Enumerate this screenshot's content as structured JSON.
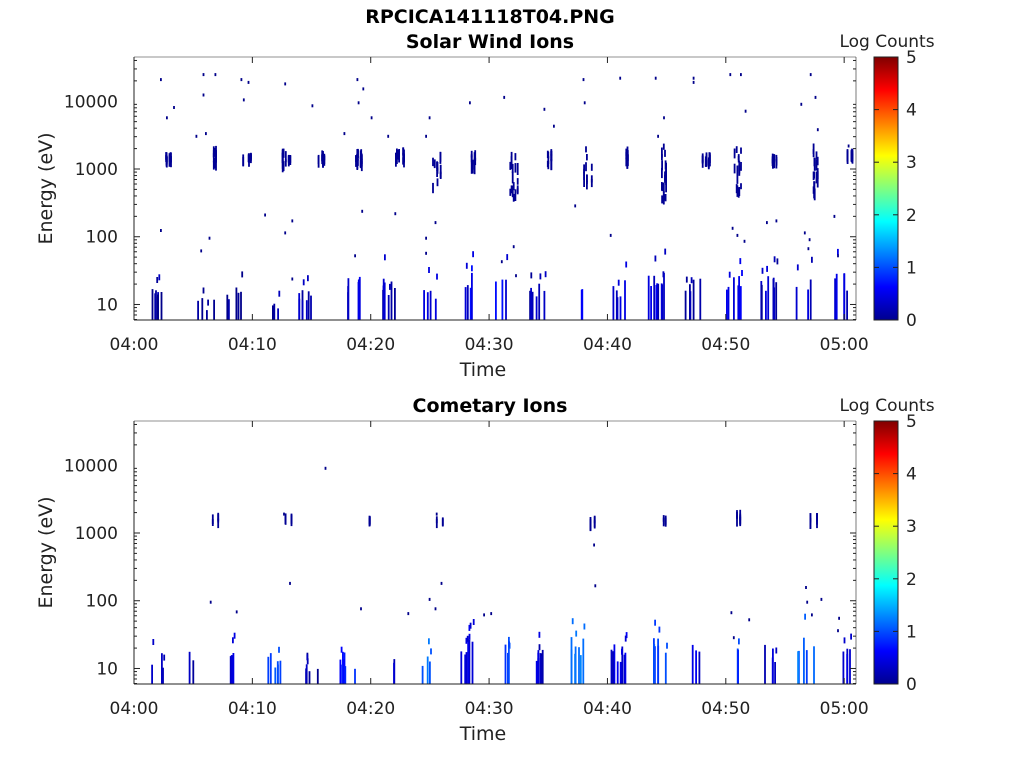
{
  "main_title": "RPCICA141118T04.PNG",
  "chart_data": [
    {
      "type": "heatmap",
      "title": "Solar Wind Ions",
      "xlabel": "Time",
      "ylabel": "Energy (eV)",
      "xticks": [
        "04:00",
        "04:10",
        "04:20",
        "04:30",
        "04:40",
        "04:50",
        "05:00"
      ],
      "xlim_minutes": [
        0,
        61
      ],
      "yticks": [
        "10",
        "100",
        "1000",
        "10000"
      ],
      "ylim": [
        5.9,
        45000
      ],
      "yscale": "log",
      "colorbar": {
        "label": "Log Counts",
        "ticks": [
          "0",
          "1",
          "2",
          "3",
          "4",
          "5"
        ],
        "range": [
          0,
          5
        ],
        "colormap": "jet"
      },
      "low_energy_bursts": [
        {
          "t": 2.0,
          "top": 17,
          "v": 0.2
        },
        {
          "t": 6.0,
          "top": 12,
          "v": 0.1
        },
        {
          "t": 8.5,
          "top": 17,
          "v": 0.2
        },
        {
          "t": 11.5,
          "top": 12,
          "v": 0.1
        },
        {
          "t": 14.5,
          "top": 17,
          "v": 0.2
        },
        {
          "t": 18.5,
          "top": 25,
          "v": 0.4
        },
        {
          "t": 21.5,
          "top": 25,
          "v": 0.3
        },
        {
          "t": 24.8,
          "top": 22,
          "v": 0.3
        },
        {
          "t": 27.8,
          "top": 28,
          "v": 0.5
        },
        {
          "t": 31.2,
          "top": 28,
          "v": 0.5
        },
        {
          "t": 34.0,
          "top": 22,
          "v": 0.3
        },
        {
          "t": 37.2,
          "top": 28,
          "v": 0.5
        },
        {
          "t": 40.8,
          "top": 22,
          "v": 0.3
        },
        {
          "t": 44.0,
          "top": 28,
          "v": 0.4
        },
        {
          "t": 47.2,
          "top": 25,
          "v": 0.3
        },
        {
          "t": 50.5,
          "top": 28,
          "v": 0.4
        },
        {
          "t": 53.6,
          "top": 25,
          "v": 0.3
        },
        {
          "t": 56.6,
          "top": 25,
          "v": 0.4
        },
        {
          "t": 59.8,
          "top": 28,
          "v": 0.4
        }
      ],
      "high_energy_bursts": [
        {
          "t": 2.8,
          "lo": 1500,
          "hi": 1800
        },
        {
          "t": 6.5,
          "lo": 1300,
          "hi": 2200
        },
        {
          "t": 9.5,
          "lo": 1500,
          "hi": 1800
        },
        {
          "t": 12.8,
          "lo": 1300,
          "hi": 2000
        },
        {
          "t": 15.8,
          "lo": 1400,
          "hi": 2000
        },
        {
          "t": 19.0,
          "lo": 1300,
          "hi": 2000
        },
        {
          "t": 22.4,
          "lo": 1400,
          "hi": 2100
        },
        {
          "t": 25.5,
          "lo": 600,
          "hi": 1800
        },
        {
          "t": 28.5,
          "lo": 1200,
          "hi": 2000
        },
        {
          "t": 32.0,
          "lo": 400,
          "hi": 1800
        },
        {
          "t": 35.0,
          "lo": 1300,
          "hi": 2000
        },
        {
          "t": 38.3,
          "lo": 500,
          "hi": 2500
        },
        {
          "t": 41.5,
          "lo": 1400,
          "hi": 2200
        },
        {
          "t": 44.8,
          "lo": 400,
          "hi": 2400
        },
        {
          "t": 48.3,
          "lo": 1300,
          "hi": 1800
        },
        {
          "t": 51.0,
          "lo": 500,
          "hi": 2400
        },
        {
          "t": 54.2,
          "lo": 1400,
          "hi": 1800
        },
        {
          "t": 57.5,
          "lo": 500,
          "hi": 2400
        },
        {
          "t": 60.5,
          "lo": 1600,
          "hi": 2000
        }
      ],
      "scatter": [
        {
          "t": 2.2,
          "e": 22000
        },
        {
          "t": 2.7,
          "e": 6000
        },
        {
          "t": 3.3,
          "e": 8500
        },
        {
          "t": 2.2,
          "e": 130
        },
        {
          "t": 5.8,
          "e": 26000
        },
        {
          "t": 6.8,
          "e": 26000
        },
        {
          "t": 5.8,
          "e": 13000
        },
        {
          "t": 5.2,
          "e": 3200
        },
        {
          "t": 6.0,
          "e": 3500
        },
        {
          "t": 6.3,
          "e": 100
        },
        {
          "t": 5.6,
          "e": 65
        },
        {
          "t": 9.0,
          "e": 22000
        },
        {
          "t": 9.6,
          "e": 20000
        },
        {
          "t": 9.2,
          "e": 11000
        },
        {
          "t": 11.0,
          "e": 220
        },
        {
          "t": 12.7,
          "e": 19000
        },
        {
          "t": 13.3,
          "e": 180
        },
        {
          "t": 13.3,
          "e": 25
        },
        {
          "t": 12.7,
          "e": 120
        },
        {
          "t": 15.0,
          "e": 9000
        },
        {
          "t": 18.8,
          "e": 22000
        },
        {
          "t": 19.3,
          "e": 16000
        },
        {
          "t": 18.9,
          "e": 10000
        },
        {
          "t": 17.7,
          "e": 3500
        },
        {
          "t": 19.2,
          "e": 250
        },
        {
          "t": 18.6,
          "e": 55
        },
        {
          "t": 20.0,
          "e": 6000
        },
        {
          "t": 21.4,
          "e": 3200
        },
        {
          "t": 22.0,
          "e": 230
        },
        {
          "t": 24.9,
          "e": 6000
        },
        {
          "t": 24.6,
          "e": 3200
        },
        {
          "t": 25.4,
          "e": 170
        },
        {
          "t": 24.6,
          "e": 100
        },
        {
          "t": 24.6,
          "e": 60
        },
        {
          "t": 28.3,
          "e": 10000
        },
        {
          "t": 31.2,
          "e": 12000
        },
        {
          "t": 32.0,
          "e": 75
        },
        {
          "t": 31.0,
          "e": 45
        },
        {
          "t": 32.2,
          "e": 28
        },
        {
          "t": 34.6,
          "e": 8000
        },
        {
          "t": 35.4,
          "e": 4500
        },
        {
          "t": 37.9,
          "e": 22000
        },
        {
          "t": 38.0,
          "e": 10000
        },
        {
          "t": 37.2,
          "e": 300
        },
        {
          "t": 41.0,
          "e": 23000
        },
        {
          "t": 40.2,
          "e": 110
        },
        {
          "t": 44.0,
          "e": 23000
        },
        {
          "t": 44.7,
          "e": 6000
        },
        {
          "t": 44.2,
          "e": 3200
        },
        {
          "t": 47.2,
          "e": 23000
        },
        {
          "t": 47.2,
          "e": 20000
        },
        {
          "t": 50.3,
          "e": 26000
        },
        {
          "t": 51.2,
          "e": 26000
        },
        {
          "t": 51.6,
          "e": 7500
        },
        {
          "t": 50.5,
          "e": 140
        },
        {
          "t": 50.9,
          "e": 110
        },
        {
          "t": 51.5,
          "e": 90
        },
        {
          "t": 53.4,
          "e": 170
        },
        {
          "t": 54.2,
          "e": 180
        },
        {
          "t": 57.1,
          "e": 26000
        },
        {
          "t": 57.5,
          "e": 12000
        },
        {
          "t": 56.3,
          "e": 9500
        },
        {
          "t": 57.7,
          "e": 4000
        },
        {
          "t": 56.6,
          "e": 120
        },
        {
          "t": 57.0,
          "e": 95
        },
        {
          "t": 56.9,
          "e": 70
        },
        {
          "t": 59.1,
          "e": 210
        },
        {
          "t": 59.4,
          "e": 55
        },
        {
          "t": 60.3,
          "e": 2300
        }
      ]
    },
    {
      "type": "heatmap",
      "title": "Cometary Ions",
      "xlabel": "Time",
      "ylabel": "Energy (eV)",
      "xticks": [
        "04:00",
        "04:10",
        "04:20",
        "04:30",
        "04:40",
        "04:50",
        "05:00"
      ],
      "xlim_minutes": [
        0,
        61
      ],
      "yticks": [
        "10",
        "100",
        "1000",
        "10000"
      ],
      "ylim": [
        5.9,
        45000
      ],
      "yscale": "log",
      "colorbar": {
        "label": "Log Counts",
        "ticks": [
          "0",
          "1",
          "2",
          "3",
          "4",
          "5"
        ],
        "range": [
          0,
          5
        ],
        "colormap": "jet"
      },
      "low_energy_bursts": [
        {
          "t": 2.0,
          "top": 17,
          "v": 0.2
        },
        {
          "t": 5.3,
          "top": 17,
          "v": 0.3
        },
        {
          "t": 8.5,
          "top": 22,
          "v": 0.5
        },
        {
          "t": 11.6,
          "top": 17,
          "v": 1.0
        },
        {
          "t": 14.8,
          "top": 12,
          "v": 0.2
        },
        {
          "t": 17.9,
          "top": 17,
          "v": 0.8
        },
        {
          "t": 21.3,
          "top": 22,
          "v": 0.3
        },
        {
          "t": 24.8,
          "top": 17,
          "v": 1.2
        },
        {
          "t": 27.9,
          "top": 28,
          "v": 0.5
        },
        {
          "t": 31.0,
          "top": 28,
          "v": 1.0
        },
        {
          "t": 34.2,
          "top": 22,
          "v": 0.3
        },
        {
          "t": 37.5,
          "top": 28,
          "v": 1.2
        },
        {
          "t": 40.8,
          "top": 22,
          "v": 0.4
        },
        {
          "t": 44.2,
          "top": 28,
          "v": 1.0
        },
        {
          "t": 47.4,
          "top": 25,
          "v": 0.4
        },
        {
          "t": 50.3,
          "top": 28,
          "v": 0.9
        },
        {
          "t": 53.5,
          "top": 22,
          "v": 0.4
        },
        {
          "t": 56.7,
          "top": 28,
          "v": 1.1
        },
        {
          "t": 59.9,
          "top": 28,
          "v": 0.5
        }
      ],
      "high_energy_bursts": [
        {
          "t": 6.8,
          "lo": 1500,
          "hi": 2000
        },
        {
          "t": 13.0,
          "lo": 1600,
          "hi": 2000
        },
        {
          "t": 19.5,
          "lo": 1600,
          "hi": 1800
        },
        {
          "t": 25.7,
          "lo": 1500,
          "hi": 2000
        },
        {
          "t": 38.6,
          "lo": 1500,
          "hi": 1800
        },
        {
          "t": 44.8,
          "lo": 1600,
          "hi": 2000
        },
        {
          "t": 51.0,
          "lo": 1600,
          "hi": 2200
        },
        {
          "t": 57.4,
          "lo": 1600,
          "hi": 2000
        }
      ],
      "scatter": [
        {
          "t": 16.1,
          "e": 9500
        },
        {
          "t": 6.4,
          "e": 100
        },
        {
          "t": 8.6,
          "e": 72
        },
        {
          "t": 13.1,
          "e": 190
        },
        {
          "t": 12.6,
          "e": 2000
        },
        {
          "t": 19.1,
          "e": 80
        },
        {
          "t": 23.1,
          "e": 68
        },
        {
          "t": 24.9,
          "e": 110
        },
        {
          "t": 25.4,
          "e": 80
        },
        {
          "t": 25.9,
          "e": 190
        },
        {
          "t": 25.5,
          "e": 2000
        },
        {
          "t": 29.5,
          "e": 65
        },
        {
          "t": 30.1,
          "e": 68
        },
        {
          "t": 38.8,
          "e": 700
        },
        {
          "t": 38.9,
          "e": 175
        },
        {
          "t": 50.4,
          "e": 70
        },
        {
          "t": 50.6,
          "e": 30
        },
        {
          "t": 51.9,
          "e": 55
        },
        {
          "t": 56.7,
          "e": 165
        },
        {
          "t": 56.8,
          "e": 100
        },
        {
          "t": 57.2,
          "e": 65
        },
        {
          "t": 58.0,
          "e": 110
        },
        {
          "t": 59.4,
          "e": 38
        },
        {
          "t": 59.5,
          "e": 58
        }
      ]
    }
  ]
}
